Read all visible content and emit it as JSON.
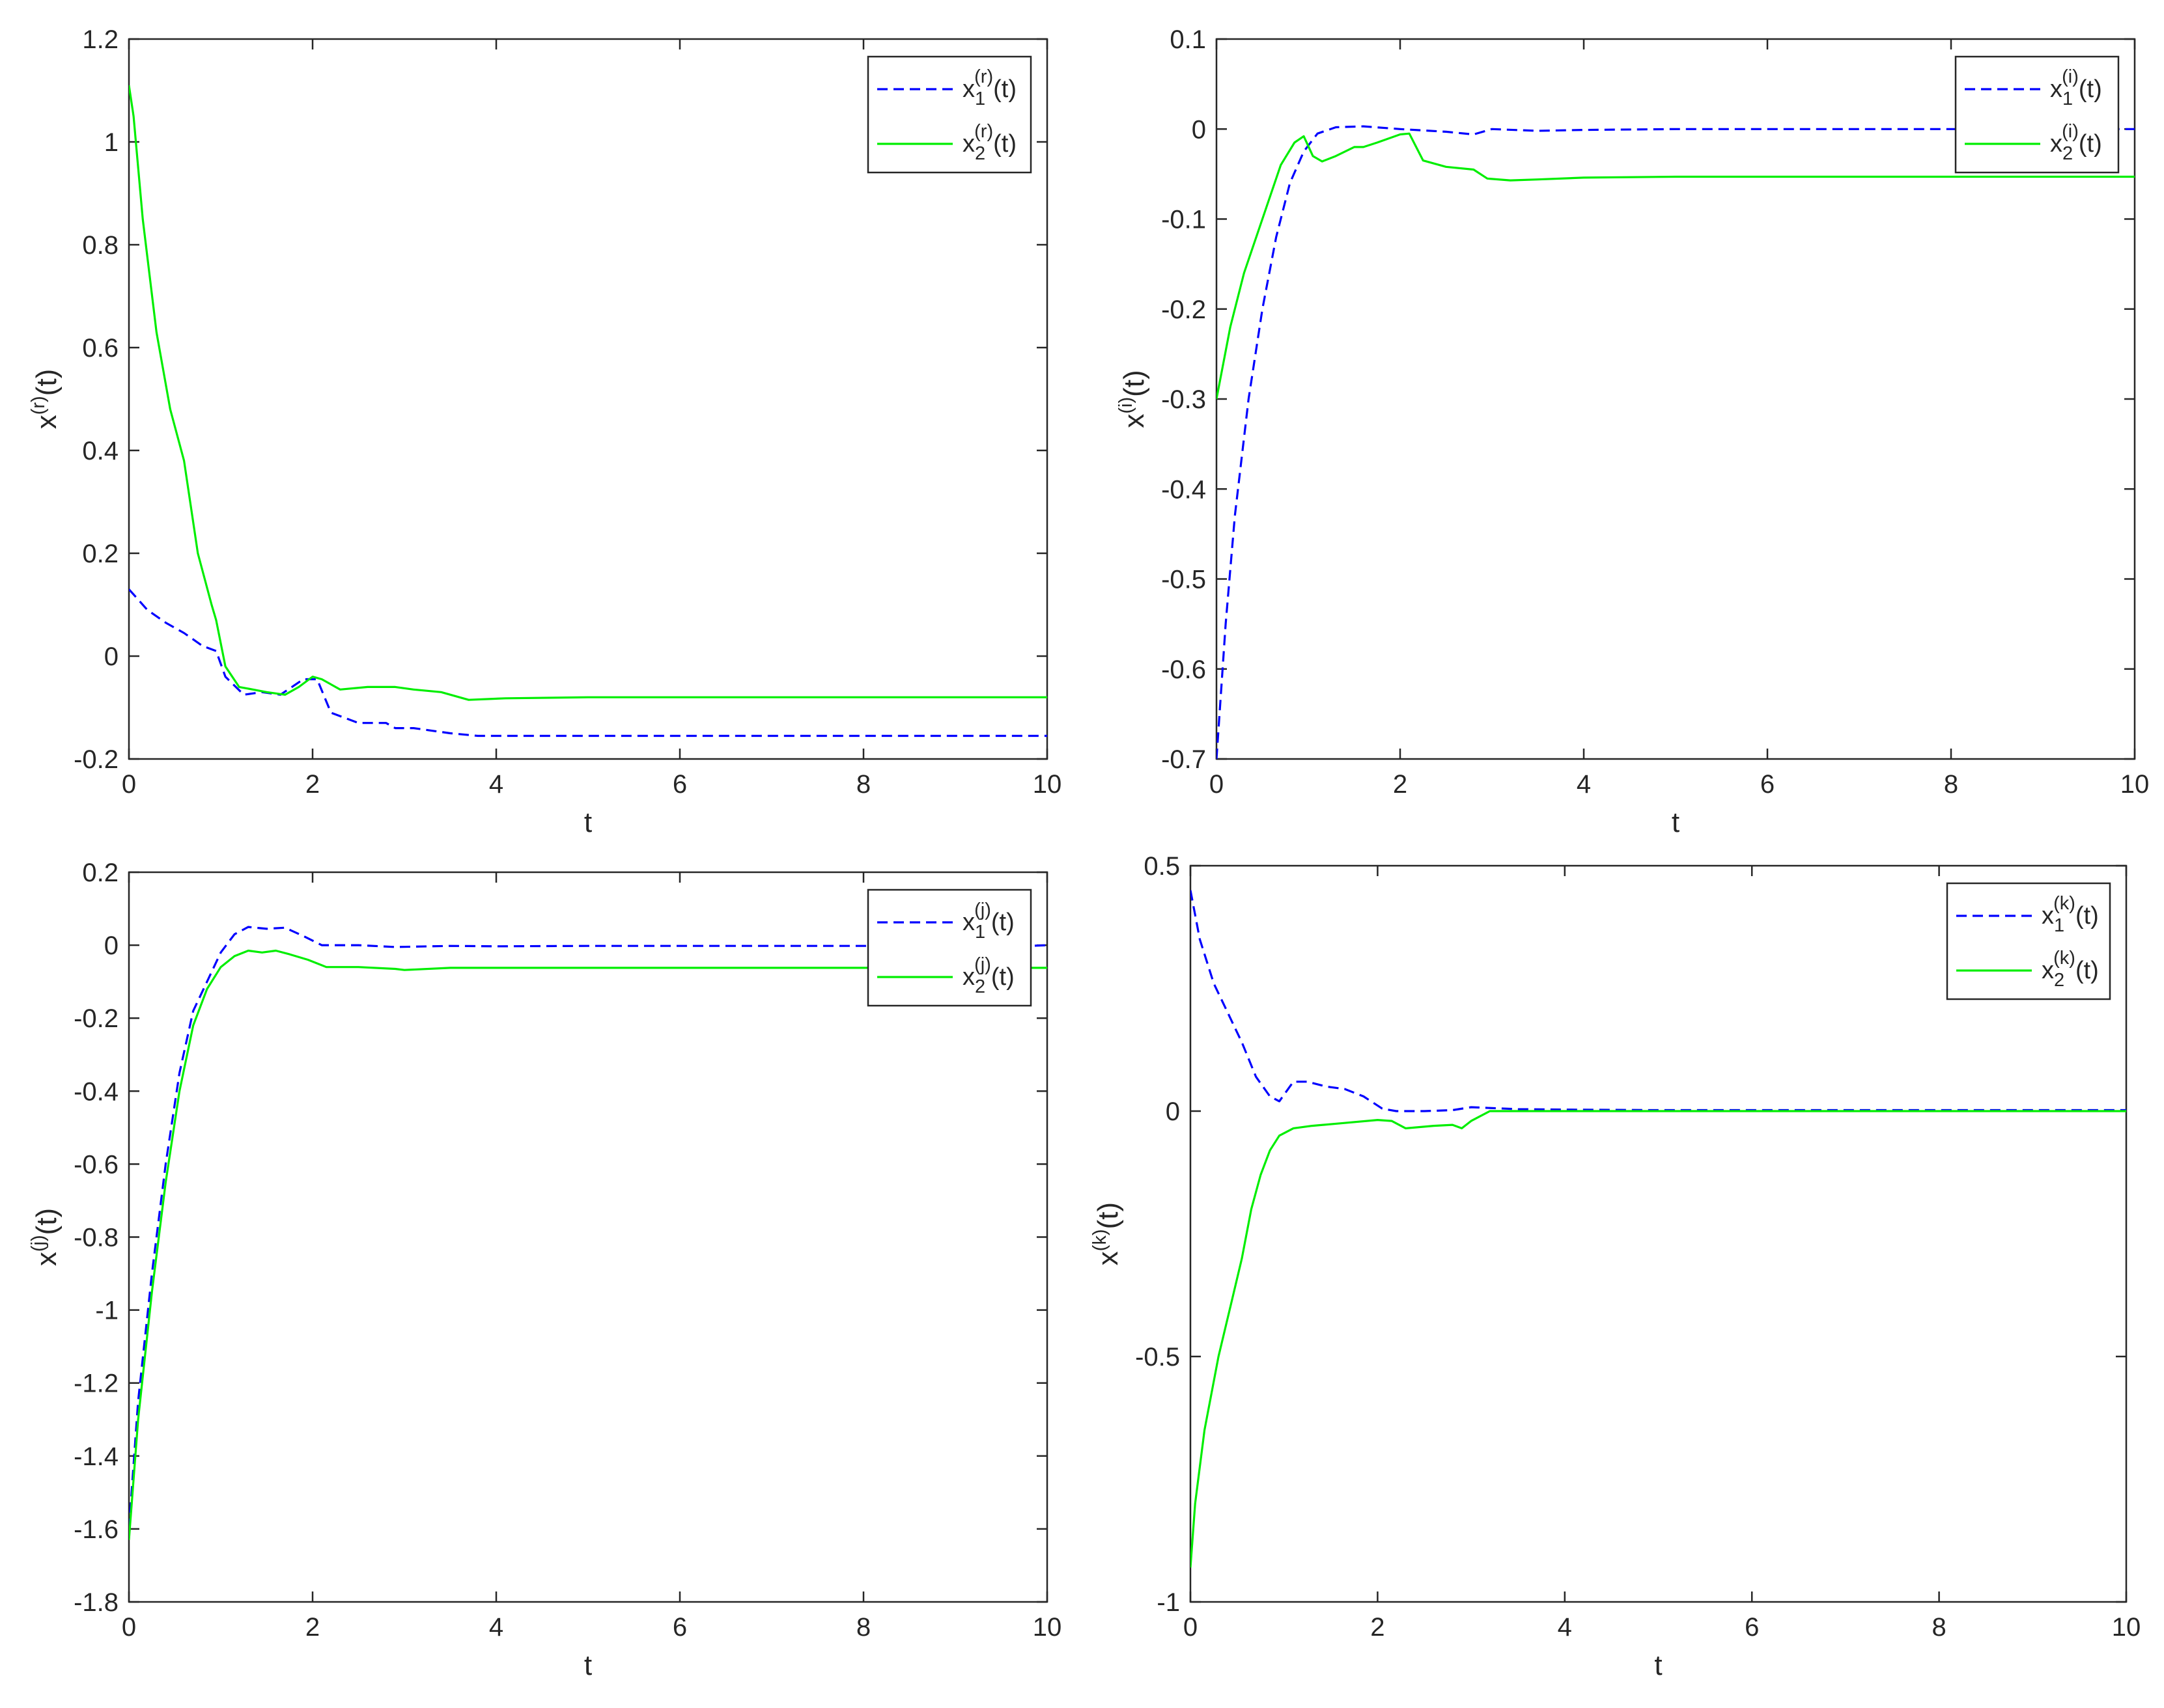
{
  "chart_data": [
    {
      "id": "r",
      "type": "line",
      "xlabel": "t",
      "ylabel": {
        "base": "x",
        "sup": "(r)",
        "tail": "(t)"
      },
      "xlim": [
        0,
        10
      ],
      "ylim": [
        -0.2,
        1.2
      ],
      "xticks": [
        0,
        2,
        4,
        6,
        8,
        10
      ],
      "xtick_labels": [
        "0",
        "2",
        "4",
        "6",
        "8",
        "10"
      ],
      "yticks": [
        -0.2,
        0,
        0.2,
        0.4,
        0.6,
        0.8,
        1,
        1.2
      ],
      "ytick_labels": [
        "-0.2",
        "0",
        "0.2",
        "0.4",
        "0.6",
        "0.8",
        "1",
        "1.2"
      ],
      "grid": false,
      "legend_position": "top-right",
      "series": [
        {
          "label": {
            "base": "x",
            "sub": "1",
            "sup": "(r)",
            "tail": "(t)"
          },
          "color": "#0000ff",
          "style": "dashed",
          "x": [
            0,
            0.2,
            0.4,
            0.6,
            0.8,
            0.95,
            1.05,
            1.25,
            1.45,
            1.65,
            1.9,
            2.05,
            2.2,
            2.5,
            2.8,
            2.9,
            3.1,
            3.5,
            3.8,
            4.2,
            5,
            6,
            8,
            10
          ],
          "y": [
            0.13,
            0.09,
            0.065,
            0.045,
            0.02,
            0.01,
            -0.04,
            -0.075,
            -0.07,
            -0.075,
            -0.045,
            -0.045,
            -0.11,
            -0.13,
            -0.13,
            -0.14,
            -0.14,
            -0.15,
            -0.155,
            -0.155,
            -0.155,
            -0.155,
            -0.155,
            -0.155
          ]
        },
        {
          "label": {
            "base": "x",
            "sub": "2",
            "sup": "(r)",
            "tail": "(t)"
          },
          "color": "#00ee00",
          "style": "solid",
          "x": [
            0,
            0.05,
            0.15,
            0.3,
            0.45,
            0.6,
            0.75,
            0.9,
            0.95,
            1.05,
            1.2,
            1.35,
            1.5,
            1.7,
            1.85,
            2.0,
            2.1,
            2.3,
            2.6,
            2.9,
            3.1,
            3.4,
            3.7,
            4.1,
            5,
            6,
            8,
            10
          ],
          "y": [
            1.11,
            1.05,
            0.85,
            0.63,
            0.48,
            0.38,
            0.2,
            0.1,
            0.07,
            -0.02,
            -0.06,
            -0.065,
            -0.07,
            -0.075,
            -0.06,
            -0.04,
            -0.045,
            -0.065,
            -0.06,
            -0.06,
            -0.065,
            -0.07,
            -0.085,
            -0.082,
            -0.08,
            -0.08,
            -0.08,
            -0.08
          ]
        }
      ]
    },
    {
      "id": "i",
      "type": "line",
      "xlabel": "t",
      "ylabel": {
        "base": "x",
        "sup": "(i)",
        "tail": "(t)"
      },
      "xlim": [
        0,
        10
      ],
      "ylim": [
        -0.7,
        0.1
      ],
      "xticks": [
        0,
        2,
        4,
        6,
        8,
        10
      ],
      "xtick_labels": [
        "0",
        "2",
        "4",
        "6",
        "8",
        "10"
      ],
      "yticks": [
        -0.7,
        -0.6,
        -0.5,
        -0.4,
        -0.3,
        -0.2,
        -0.1,
        0,
        0.1
      ],
      "ytick_labels": [
        "-0.7",
        "-0.6",
        "-0.5",
        "-0.4",
        "-0.3",
        "-0.2",
        "-0.1",
        "0",
        "0.1"
      ],
      "grid": false,
      "legend_position": "top-right",
      "series": [
        {
          "label": {
            "base": "x",
            "sub": "1",
            "sup": "(i)",
            "tail": "(t)"
          },
          "color": "#0000ff",
          "style": "dashed",
          "x": [
            0,
            0.1,
            0.2,
            0.35,
            0.5,
            0.65,
            0.8,
            0.95,
            1.1,
            1.3,
            1.6,
            2.0,
            2.5,
            2.8,
            3.0,
            3.5,
            4.0,
            5,
            6,
            8,
            9.8,
            10
          ],
          "y": [
            -0.7,
            -0.55,
            -0.43,
            -0.3,
            -0.2,
            -0.12,
            -0.06,
            -0.025,
            -0.005,
            0.002,
            0.003,
            0.0,
            -0.003,
            -0.006,
            0.0,
            -0.002,
            -0.001,
            0.0,
            0.0,
            0.0,
            0.0,
            0.0
          ]
        },
        {
          "label": {
            "base": "x",
            "sub": "2",
            "sup": "(i)",
            "tail": "(t)"
          },
          "color": "#00ee00",
          "style": "solid",
          "x": [
            0,
            0.15,
            0.3,
            0.5,
            0.7,
            0.85,
            0.95,
            1.05,
            1.15,
            1.3,
            1.5,
            1.6,
            1.75,
            2.0,
            2.1,
            2.25,
            2.5,
            2.8,
            2.95,
            3.2,
            3.5,
            4.0,
            5,
            6,
            8,
            10
          ],
          "y": [
            -0.3,
            -0.22,
            -0.16,
            -0.1,
            -0.04,
            -0.015,
            -0.008,
            -0.03,
            -0.036,
            -0.03,
            -0.02,
            -0.02,
            -0.015,
            -0.006,
            -0.005,
            -0.035,
            -0.042,
            -0.045,
            -0.055,
            -0.057,
            -0.056,
            -0.054,
            -0.053,
            -0.053,
            -0.053,
            -0.053
          ]
        }
      ]
    },
    {
      "id": "j",
      "type": "line",
      "xlabel": "t",
      "ylabel": {
        "base": "x",
        "sup": "(j)",
        "tail": "(t)"
      },
      "xlim": [
        0,
        10
      ],
      "ylim": [
        -1.8,
        0.2
      ],
      "xticks": [
        0,
        2,
        4,
        6,
        8,
        10
      ],
      "xtick_labels": [
        "0",
        "2",
        "4",
        "6",
        "8",
        "10"
      ],
      "yticks": [
        -1.8,
        -1.6,
        -1.4,
        -1.2,
        -1,
        -0.8,
        -0.6,
        -0.4,
        -0.2,
        0,
        0.2
      ],
      "ytick_labels": [
        "-1.8",
        "-1.6",
        "-1.4",
        "-1.2",
        "-1",
        "-0.8",
        "-0.6",
        "-0.4",
        "-0.2",
        "0",
        "0.2"
      ],
      "grid": false,
      "legend_position": "top-right",
      "series": [
        {
          "label": {
            "base": "x",
            "sub": "1",
            "sup": "(j)",
            "tail": "(t)"
          },
          "color": "#0000ff",
          "style": "dashed",
          "x": [
            0,
            0.1,
            0.25,
            0.4,
            0.55,
            0.7,
            0.85,
            1.0,
            1.15,
            1.3,
            1.5,
            1.7,
            1.9,
            2.1,
            2.5,
            2.9,
            3.5,
            4,
            5,
            6,
            8,
            9.8,
            10
          ],
          "y": [
            -1.6,
            -1.25,
            -0.9,
            -0.6,
            -0.35,
            -0.18,
            -0.1,
            -0.02,
            0.03,
            0.05,
            0.045,
            0.048,
            0.025,
            0.0,
            0.0,
            -0.005,
            -0.002,
            -0.003,
            -0.002,
            -0.002,
            -0.002,
            -0.002,
            0.0
          ]
        },
        {
          "label": {
            "base": "x",
            "sub": "2",
            "sup": "(j)",
            "tail": "(t)"
          },
          "color": "#00ee00",
          "style": "solid",
          "x": [
            0,
            0.1,
            0.25,
            0.4,
            0.55,
            0.7,
            0.85,
            1.0,
            1.15,
            1.3,
            1.45,
            1.6,
            1.75,
            1.95,
            2.1,
            2.15,
            2.5,
            2.9,
            3.0,
            3.5,
            4,
            5,
            6,
            8,
            10
          ],
          "y": [
            -1.63,
            -1.3,
            -0.95,
            -0.65,
            -0.4,
            -0.22,
            -0.12,
            -0.06,
            -0.03,
            -0.015,
            -0.02,
            -0.015,
            -0.025,
            -0.04,
            -0.055,
            -0.06,
            -0.06,
            -0.065,
            -0.068,
            -0.062,
            -0.062,
            -0.062,
            -0.062,
            -0.062,
            -0.062
          ]
        }
      ]
    },
    {
      "id": "k",
      "type": "line",
      "xlabel": "t",
      "ylabel": {
        "base": "x",
        "sup": "(k)",
        "tail": "(t)"
      },
      "xlim": [
        0,
        10
      ],
      "ylim": [
        -1,
        0.5
      ],
      "xticks": [
        0,
        2,
        4,
        6,
        8,
        10
      ],
      "xtick_labels": [
        "0",
        "2",
        "4",
        "6",
        "8",
        "10"
      ],
      "yticks": [
        -1,
        -0.5,
        0,
        0.5
      ],
      "ytick_labels": [
        "-1",
        "-0.5",
        "0",
        "0.5"
      ],
      "grid": false,
      "legend_position": "top-right",
      "series": [
        {
          "label": {
            "base": "x",
            "sub": "1",
            "sup": "(k)",
            "tail": "(t)"
          },
          "color": "#0000ff",
          "style": "dashed",
          "x": [
            0,
            0.1,
            0.25,
            0.4,
            0.55,
            0.7,
            0.85,
            0.95,
            1.1,
            1.25,
            1.45,
            1.65,
            1.85,
            2.05,
            2.2,
            2.5,
            2.8,
            3.0,
            3.5,
            4,
            5,
            6,
            8,
            10
          ],
          "y": [
            0.45,
            0.35,
            0.26,
            0.2,
            0.14,
            0.07,
            0.03,
            0.02,
            0.06,
            0.06,
            0.05,
            0.045,
            0.03,
            0.005,
            0.0,
            0.0,
            0.002,
            0.008,
            0.004,
            0.003,
            0.002,
            0.002,
            0.002,
            0.002
          ]
        },
        {
          "label": {
            "base": "x",
            "sub": "2",
            "sup": "(k)",
            "tail": "(t)"
          },
          "color": "#00ee00",
          "style": "solid",
          "x": [
            0,
            0.05,
            0.15,
            0.3,
            0.45,
            0.55,
            0.65,
            0.75,
            0.85,
            0.95,
            1.1,
            1.3,
            1.6,
            2.0,
            2.15,
            2.3,
            2.6,
            2.8,
            2.9,
            3.0,
            3.2,
            4,
            5,
            6,
            8,
            10
          ],
          "y": [
            -0.93,
            -0.8,
            -0.65,
            -0.5,
            -0.38,
            -0.3,
            -0.2,
            -0.13,
            -0.08,
            -0.05,
            -0.035,
            -0.03,
            -0.025,
            -0.018,
            -0.02,
            -0.035,
            -0.03,
            -0.028,
            -0.035,
            -0.02,
            0.0,
            0.0,
            0.0,
            0.0,
            0.0,
            0.0
          ]
        }
      ]
    }
  ]
}
